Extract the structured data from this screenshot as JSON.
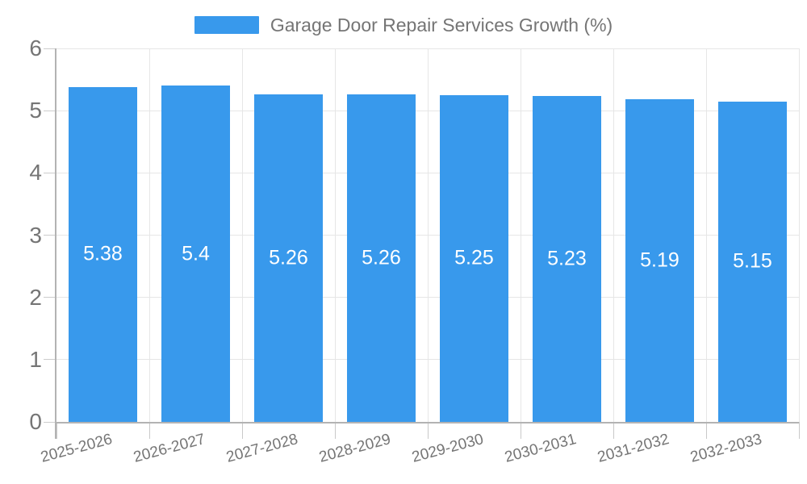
{
  "chart_data": {
    "type": "bar",
    "title": "Garage Door Repair Services Growth (%)",
    "categories": [
      "2025-2026",
      "2026-2027",
      "2027-2028",
      "2028-2029",
      "2029-2030",
      "2030-2031",
      "2031-2032",
      "2032-2033"
    ],
    "values": [
      5.38,
      5.4,
      5.26,
      5.26,
      5.25,
      5.23,
      5.19,
      5.15
    ],
    "value_labels": [
      "5.38",
      "5.4",
      "5.26",
      "5.26",
      "5.25",
      "5.23",
      "5.19",
      "5.15"
    ],
    "xlabel": "",
    "ylabel": "",
    "ylim": [
      0,
      6
    ],
    "y_ticks": [
      0,
      1,
      2,
      3,
      4,
      5,
      6
    ],
    "grid": "on",
    "legend_position": "top",
    "colors": {
      "bar": "#3899ec",
      "value_label": "#ffffff",
      "axis_text": "#757575",
      "title_text": "#757575",
      "gridline": "#e6e6e6",
      "axis_line": "#b3b3b3"
    }
  }
}
